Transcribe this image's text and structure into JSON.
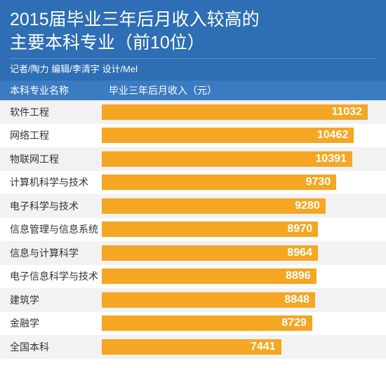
{
  "chart": {
    "type": "bar",
    "title_line1": "2015届毕业三年后月收入较高的",
    "title_line2": "主要本科专业（前10位）",
    "credits": "记者/陶力  编辑/李清宇  设计/Mel",
    "header_bg": "#2d6eb4",
    "header_text_color": "#ffffff",
    "credits_border_color": "#5a8fc7",
    "table_header_bg": "#3b7cc0",
    "column_label": "本科专业名称",
    "value_label": "毕业三年后月收入（元）",
    "row_bg_even": "#f2f2f2",
    "row_bg_odd": "#ffffff",
    "row_text_color": "#333333",
    "bar_color": "#f5a623",
    "bar_value_color": "#ffffff",
    "bar_value_fontweight": "700",
    "max_value": 11500,
    "rows": [
      {
        "label": "软件工程",
        "value": 11032
      },
      {
        "label": "网络工程",
        "value": 10462
      },
      {
        "label": "物联网工程",
        "value": 10391
      },
      {
        "label": "计算机科学与技术",
        "value": 9730
      },
      {
        "label": "电子科学与技术",
        "value": 9280
      },
      {
        "label": "信息管理与信息系统",
        "value": 8970
      },
      {
        "label": "信息与计算科学",
        "value": 8964
      },
      {
        "label": "电子信息科学与技术",
        "value": 8896
      },
      {
        "label": "建筑学",
        "value": 8848
      },
      {
        "label": "金融学",
        "value": 8729
      },
      {
        "label": "全国本科",
        "value": 7441
      }
    ]
  }
}
